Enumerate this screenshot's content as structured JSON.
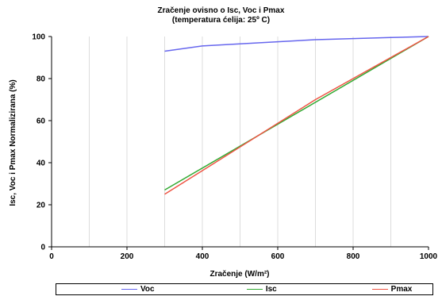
{
  "chart_data": {
    "type": "line",
    "title": "Zračenje ovisno o Isc, Voc i Pmax",
    "subtitle": "(temperatura ćelija: 25º C)",
    "xlabel": "Zračenje (W/m²)",
    "ylabel": "Isc, Voc i Pmax Normalizirana (%)",
    "xlim": [
      0,
      1000
    ],
    "ylim": [
      0,
      100
    ],
    "x_ticks": [
      "0",
      "200",
      "400",
      "600",
      "800",
      "1000"
    ],
    "y_ticks": [
      "0",
      "20",
      "40",
      "60",
      "80",
      "100"
    ],
    "grid": "vertical",
    "legend_position": "bottom",
    "series": [
      {
        "name": "Voc",
        "color": "#6666ee",
        "points": [
          [
            300,
            93
          ],
          [
            400,
            95.5
          ],
          [
            500,
            96.5
          ],
          [
            600,
            97.5
          ],
          [
            700,
            98.5
          ],
          [
            800,
            99
          ],
          [
            900,
            99.5
          ],
          [
            1000,
            100
          ]
        ]
      },
      {
        "name": "Isc",
        "color": "#33aa33",
        "points": [
          [
            300,
            27
          ],
          [
            1000,
            100
          ]
        ]
      },
      {
        "name": "Pmax",
        "color": "#ee5544",
        "points": [
          [
            300,
            25
          ],
          [
            700,
            70
          ],
          [
            1000,
            100
          ]
        ]
      }
    ]
  }
}
